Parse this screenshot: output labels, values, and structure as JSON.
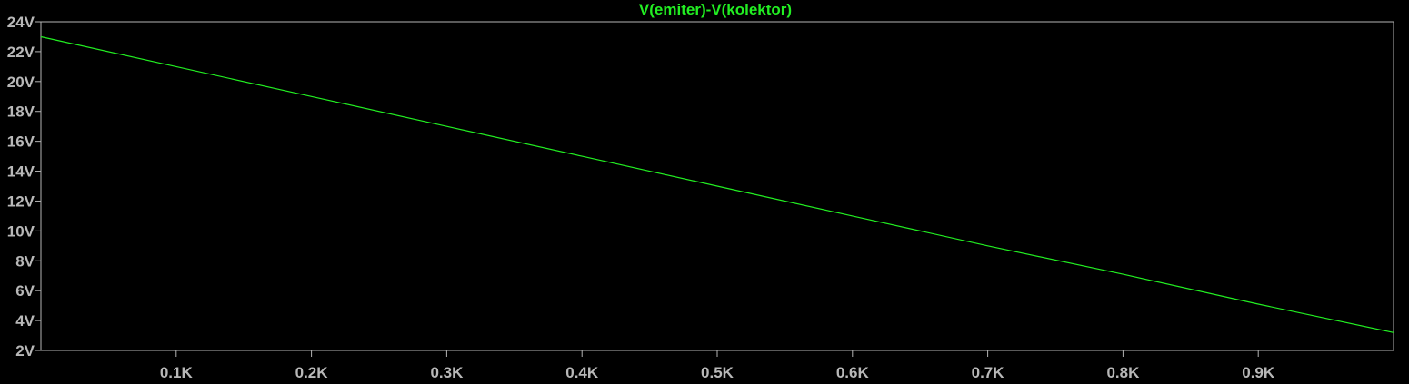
{
  "chart_data": {
    "type": "line",
    "title": "V(emiter)-V(kolektor)",
    "xlabel": "",
    "ylabel": "",
    "xlim": [
      0,
      1000
    ],
    "ylim": [
      2,
      24
    ],
    "x_ticks": [
      {
        "value": 100,
        "label": "0.1K"
      },
      {
        "value": 200,
        "label": "0.2K"
      },
      {
        "value": 300,
        "label": "0.3K"
      },
      {
        "value": 400,
        "label": "0.4K"
      },
      {
        "value": 500,
        "label": "0.5K"
      },
      {
        "value": 600,
        "label": "0.6K"
      },
      {
        "value": 700,
        "label": "0.7K"
      },
      {
        "value": 800,
        "label": "0.8K"
      },
      {
        "value": 900,
        "label": "0.9K"
      }
    ],
    "y_ticks": [
      {
        "value": 24,
        "label": "24V"
      },
      {
        "value": 22,
        "label": "22V"
      },
      {
        "value": 20,
        "label": "20V"
      },
      {
        "value": 18,
        "label": "18V"
      },
      {
        "value": 16,
        "label": "16V"
      },
      {
        "value": 14,
        "label": "14V"
      },
      {
        "value": 12,
        "label": "12V"
      },
      {
        "value": 10,
        "label": "10V"
      },
      {
        "value": 8,
        "label": "8V"
      },
      {
        "value": 6,
        "label": "6V"
      },
      {
        "value": 4,
        "label": "4V"
      },
      {
        "value": 2,
        "label": "2V"
      }
    ],
    "grid": false,
    "series": [
      {
        "name": "V(emiter)-V(kolektor)",
        "color": "#22ee22",
        "x": [
          0,
          100,
          200,
          300,
          400,
          500,
          600,
          700,
          800,
          900,
          1000
        ],
        "y": [
          23.0,
          21.0,
          19.0,
          17.0,
          15.0,
          13.0,
          11.0,
          9.0,
          7.1,
          5.1,
          3.2
        ]
      }
    ]
  },
  "colors": {
    "background": "#000000",
    "frame": "#b4b4b4",
    "tick_label": "#b8b8b8",
    "title": "#22ee22"
  }
}
